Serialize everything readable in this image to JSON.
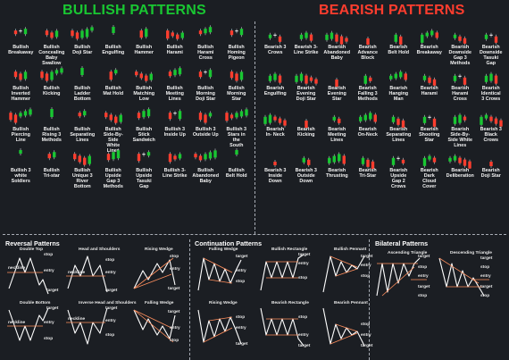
{
  "bullish_title": "BULLISH PATTERNS",
  "bearish_title": "BEARISH PATTERNS",
  "colors": {
    "bull": "#19c732",
    "bear": "#ff3d2e",
    "white": "#ffffff",
    "background": "#1b1e23",
    "line": "#ffffff",
    "level": "#ff8f5e"
  },
  "bullish": [
    [
      "Bullish",
      "Breakaway"
    ],
    [
      "Bullish",
      "Concealing",
      "Baby",
      "Swallow"
    ],
    [
      "Bullish",
      "Doji Star"
    ],
    [
      "Bullish",
      "Engulfing"
    ],
    [
      "Bullish",
      "Hammer"
    ],
    [
      "Bullish",
      "Harami"
    ],
    [
      "Bullish",
      "Harami",
      "Cross"
    ],
    [
      "Bullish",
      "Homing",
      "Pigeon"
    ],
    [
      "Bullish",
      "Inverted",
      "Hammer"
    ],
    [
      "Bullish",
      "Kicking"
    ],
    [
      "Bullish",
      "Ladder",
      "Bottom"
    ],
    [
      "Bullish",
      "Mat Hold"
    ],
    [
      "Bullish",
      "Matching",
      "Low"
    ],
    [
      "Bullish",
      "Meeting",
      "Lines"
    ],
    [
      "Bullish",
      "Morning",
      "Doji Star"
    ],
    [
      "Bullish",
      "Morning",
      "Star"
    ],
    [
      "Bullish",
      "Piercing",
      "Line"
    ],
    [
      "Bullish",
      "Rising 3",
      "Methods"
    ],
    [
      "Bullish",
      "Separating",
      "Lines"
    ],
    [
      "Bullish",
      "Side-By-",
      "Side",
      "White",
      "Lines"
    ],
    [
      "Bullish",
      "Stick",
      "Sandwich"
    ],
    [
      "Bullish 3",
      "Inside Up"
    ],
    [
      "Bullish 3",
      "Outside Up"
    ],
    [
      "Bullish 3",
      "Stars in",
      "the",
      "South"
    ],
    [
      "Bullish 3",
      "white",
      "Soldiers"
    ],
    [
      "Bullish",
      "Tri-star"
    ],
    [
      "Bullish",
      "Unique 3",
      "River",
      "Bottom"
    ],
    [
      "Bullish",
      "Upside",
      "Gap 3",
      "Methods"
    ],
    [
      "Bullish",
      "Upside",
      "Tasuki",
      "Gap"
    ],
    [
      "Bullish 3-",
      "Line Strike"
    ],
    [
      "Bullish",
      "Abandoned",
      "Baby"
    ],
    [
      "Bullish",
      "Belt Hold"
    ]
  ],
  "bearish": [
    [
      "Bearish 3",
      "Crows"
    ],
    [
      "Bearish 3-",
      "Line Strike"
    ],
    [
      "Bearish",
      "Abandoned",
      "Baby"
    ],
    [
      "Bearish",
      "Advance",
      "Block"
    ],
    [
      "Bearish",
      "Belt Hold"
    ],
    [
      "Bearish",
      "Breakaway"
    ],
    [
      "Bearish",
      "Downside",
      "Gap 3",
      "Methods"
    ],
    [
      "Bearish",
      "Downside",
      "Tasuki",
      "Gap"
    ],
    [
      "Bearish",
      "Engulfing"
    ],
    [
      "Bearish",
      "Evening",
      "Doji Star"
    ],
    [
      "Bearish",
      "Evening",
      "Star"
    ],
    [
      "Bearish",
      "Falling 3",
      "Methods"
    ],
    [
      "Bearish",
      "Hanging",
      "Man"
    ],
    [
      "Bearish",
      "Harami"
    ],
    [
      "Bearish",
      "Harami",
      "Cross"
    ],
    [
      "Bearish",
      "Identical",
      "3 Crows"
    ],
    [
      "Bearish",
      "In- Neck"
    ],
    [
      "Bearish",
      "Kicking"
    ],
    [
      "Bearish",
      "Meeting",
      "Lines"
    ],
    [
      "Bearish",
      "On-Neck"
    ],
    [
      "Bearish",
      "Separating",
      "Lines"
    ],
    [
      "Bearish",
      "Shooting",
      "Star"
    ],
    [
      "Bearish",
      "Side-By-",
      "Side White",
      "Lines"
    ],
    [
      "Bearish 3",
      "Black",
      "Crows"
    ],
    [
      "Bearish 3",
      "Inside",
      "Down"
    ],
    [
      "Bearish 3",
      "Outside",
      "Down"
    ],
    [
      "Bearish",
      "Thrusting"
    ],
    [
      "Bearish",
      "Tri-Star"
    ],
    [
      "Bearish",
      "Upside",
      "Gap 2",
      "Crows"
    ],
    [
      "Bearish",
      "Dark",
      "Cloud",
      "Cover"
    ],
    [
      "Bearish",
      "Deliberation"
    ],
    [
      "Bearish",
      "Doji Star"
    ]
  ],
  "sections": {
    "reversal": "Reversal Patterns",
    "continuation": "Continuation Patterns",
    "bilateral": "Bilateral Patterns"
  },
  "labels": {
    "stop": "stop",
    "entry": "entry",
    "target": "target",
    "neckline": "neckline"
  },
  "charts": {
    "double_top": "Double Top",
    "head_shoulders": "Head and Shoulders",
    "rising_wedge": "Rising Wedge",
    "double_bottom": "Double Bottom",
    "inv_head_shoulders": "Inverse Head and Shoulders",
    "falling_wedge_rev": "Falling Wedge",
    "falling_wedge": "Falling Wedge",
    "bull_rect": "Bullish Rectangle",
    "bull_pennant": "Bullish Pennant",
    "rising_wedge_cont": "Rising Wedge",
    "bear_rect": "Bearish Rectangle",
    "bear_pennant": "Bearish Pennant",
    "asc_triangle": "Ascending Triangle",
    "desc_triangle": "Descending Triangle"
  }
}
